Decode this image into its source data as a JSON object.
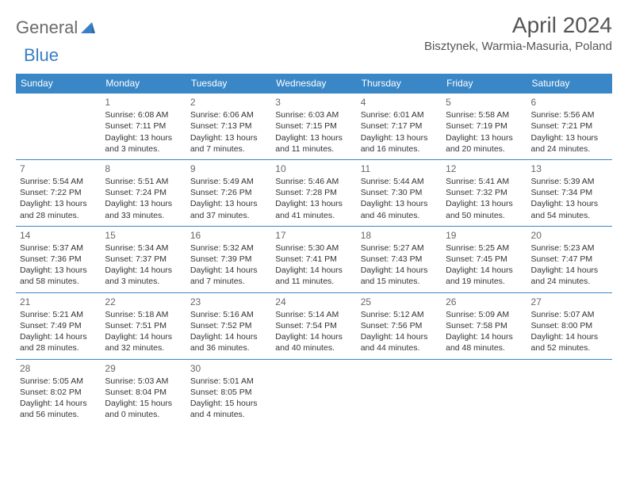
{
  "logo": {
    "part1": "General",
    "part2": "Blue"
  },
  "title": "April 2024",
  "location": "Bisztynek, Warmia-Masuria, Poland",
  "colors": {
    "header_bg": "#3a87c7",
    "header_text": "#ffffff",
    "border": "#3a87c7",
    "logo_gray": "#6b6b6b",
    "logo_blue": "#3a7fc4",
    "text": "#333333",
    "daynum": "#666666",
    "title_color": "#555555",
    "background": "#ffffff"
  },
  "day_headers": [
    "Sunday",
    "Monday",
    "Tuesday",
    "Wednesday",
    "Thursday",
    "Friday",
    "Saturday"
  ],
  "weeks": [
    [
      null,
      {
        "n": "1",
        "sr": "Sunrise: 6:08 AM",
        "ss": "Sunset: 7:11 PM",
        "dl": "Daylight: 13 hours and 3 minutes."
      },
      {
        "n": "2",
        "sr": "Sunrise: 6:06 AM",
        "ss": "Sunset: 7:13 PM",
        "dl": "Daylight: 13 hours and 7 minutes."
      },
      {
        "n": "3",
        "sr": "Sunrise: 6:03 AM",
        "ss": "Sunset: 7:15 PM",
        "dl": "Daylight: 13 hours and 11 minutes."
      },
      {
        "n": "4",
        "sr": "Sunrise: 6:01 AM",
        "ss": "Sunset: 7:17 PM",
        "dl": "Daylight: 13 hours and 16 minutes."
      },
      {
        "n": "5",
        "sr": "Sunrise: 5:58 AM",
        "ss": "Sunset: 7:19 PM",
        "dl": "Daylight: 13 hours and 20 minutes."
      },
      {
        "n": "6",
        "sr": "Sunrise: 5:56 AM",
        "ss": "Sunset: 7:21 PM",
        "dl": "Daylight: 13 hours and 24 minutes."
      }
    ],
    [
      {
        "n": "7",
        "sr": "Sunrise: 5:54 AM",
        "ss": "Sunset: 7:22 PM",
        "dl": "Daylight: 13 hours and 28 minutes."
      },
      {
        "n": "8",
        "sr": "Sunrise: 5:51 AM",
        "ss": "Sunset: 7:24 PM",
        "dl": "Daylight: 13 hours and 33 minutes."
      },
      {
        "n": "9",
        "sr": "Sunrise: 5:49 AM",
        "ss": "Sunset: 7:26 PM",
        "dl": "Daylight: 13 hours and 37 minutes."
      },
      {
        "n": "10",
        "sr": "Sunrise: 5:46 AM",
        "ss": "Sunset: 7:28 PM",
        "dl": "Daylight: 13 hours and 41 minutes."
      },
      {
        "n": "11",
        "sr": "Sunrise: 5:44 AM",
        "ss": "Sunset: 7:30 PM",
        "dl": "Daylight: 13 hours and 46 minutes."
      },
      {
        "n": "12",
        "sr": "Sunrise: 5:41 AM",
        "ss": "Sunset: 7:32 PM",
        "dl": "Daylight: 13 hours and 50 minutes."
      },
      {
        "n": "13",
        "sr": "Sunrise: 5:39 AM",
        "ss": "Sunset: 7:34 PM",
        "dl": "Daylight: 13 hours and 54 minutes."
      }
    ],
    [
      {
        "n": "14",
        "sr": "Sunrise: 5:37 AM",
        "ss": "Sunset: 7:36 PM",
        "dl": "Daylight: 13 hours and 58 minutes."
      },
      {
        "n": "15",
        "sr": "Sunrise: 5:34 AM",
        "ss": "Sunset: 7:37 PM",
        "dl": "Daylight: 14 hours and 3 minutes."
      },
      {
        "n": "16",
        "sr": "Sunrise: 5:32 AM",
        "ss": "Sunset: 7:39 PM",
        "dl": "Daylight: 14 hours and 7 minutes."
      },
      {
        "n": "17",
        "sr": "Sunrise: 5:30 AM",
        "ss": "Sunset: 7:41 PM",
        "dl": "Daylight: 14 hours and 11 minutes."
      },
      {
        "n": "18",
        "sr": "Sunrise: 5:27 AM",
        "ss": "Sunset: 7:43 PM",
        "dl": "Daylight: 14 hours and 15 minutes."
      },
      {
        "n": "19",
        "sr": "Sunrise: 5:25 AM",
        "ss": "Sunset: 7:45 PM",
        "dl": "Daylight: 14 hours and 19 minutes."
      },
      {
        "n": "20",
        "sr": "Sunrise: 5:23 AM",
        "ss": "Sunset: 7:47 PM",
        "dl": "Daylight: 14 hours and 24 minutes."
      }
    ],
    [
      {
        "n": "21",
        "sr": "Sunrise: 5:21 AM",
        "ss": "Sunset: 7:49 PM",
        "dl": "Daylight: 14 hours and 28 minutes."
      },
      {
        "n": "22",
        "sr": "Sunrise: 5:18 AM",
        "ss": "Sunset: 7:51 PM",
        "dl": "Daylight: 14 hours and 32 minutes."
      },
      {
        "n": "23",
        "sr": "Sunrise: 5:16 AM",
        "ss": "Sunset: 7:52 PM",
        "dl": "Daylight: 14 hours and 36 minutes."
      },
      {
        "n": "24",
        "sr": "Sunrise: 5:14 AM",
        "ss": "Sunset: 7:54 PM",
        "dl": "Daylight: 14 hours and 40 minutes."
      },
      {
        "n": "25",
        "sr": "Sunrise: 5:12 AM",
        "ss": "Sunset: 7:56 PM",
        "dl": "Daylight: 14 hours and 44 minutes."
      },
      {
        "n": "26",
        "sr": "Sunrise: 5:09 AM",
        "ss": "Sunset: 7:58 PM",
        "dl": "Daylight: 14 hours and 48 minutes."
      },
      {
        "n": "27",
        "sr": "Sunrise: 5:07 AM",
        "ss": "Sunset: 8:00 PM",
        "dl": "Daylight: 14 hours and 52 minutes."
      }
    ],
    [
      {
        "n": "28",
        "sr": "Sunrise: 5:05 AM",
        "ss": "Sunset: 8:02 PM",
        "dl": "Daylight: 14 hours and 56 minutes."
      },
      {
        "n": "29",
        "sr": "Sunrise: 5:03 AM",
        "ss": "Sunset: 8:04 PM",
        "dl": "Daylight: 15 hours and 0 minutes."
      },
      {
        "n": "30",
        "sr": "Sunrise: 5:01 AM",
        "ss": "Sunset: 8:05 PM",
        "dl": "Daylight: 15 hours and 4 minutes."
      },
      null,
      null,
      null,
      null
    ]
  ]
}
